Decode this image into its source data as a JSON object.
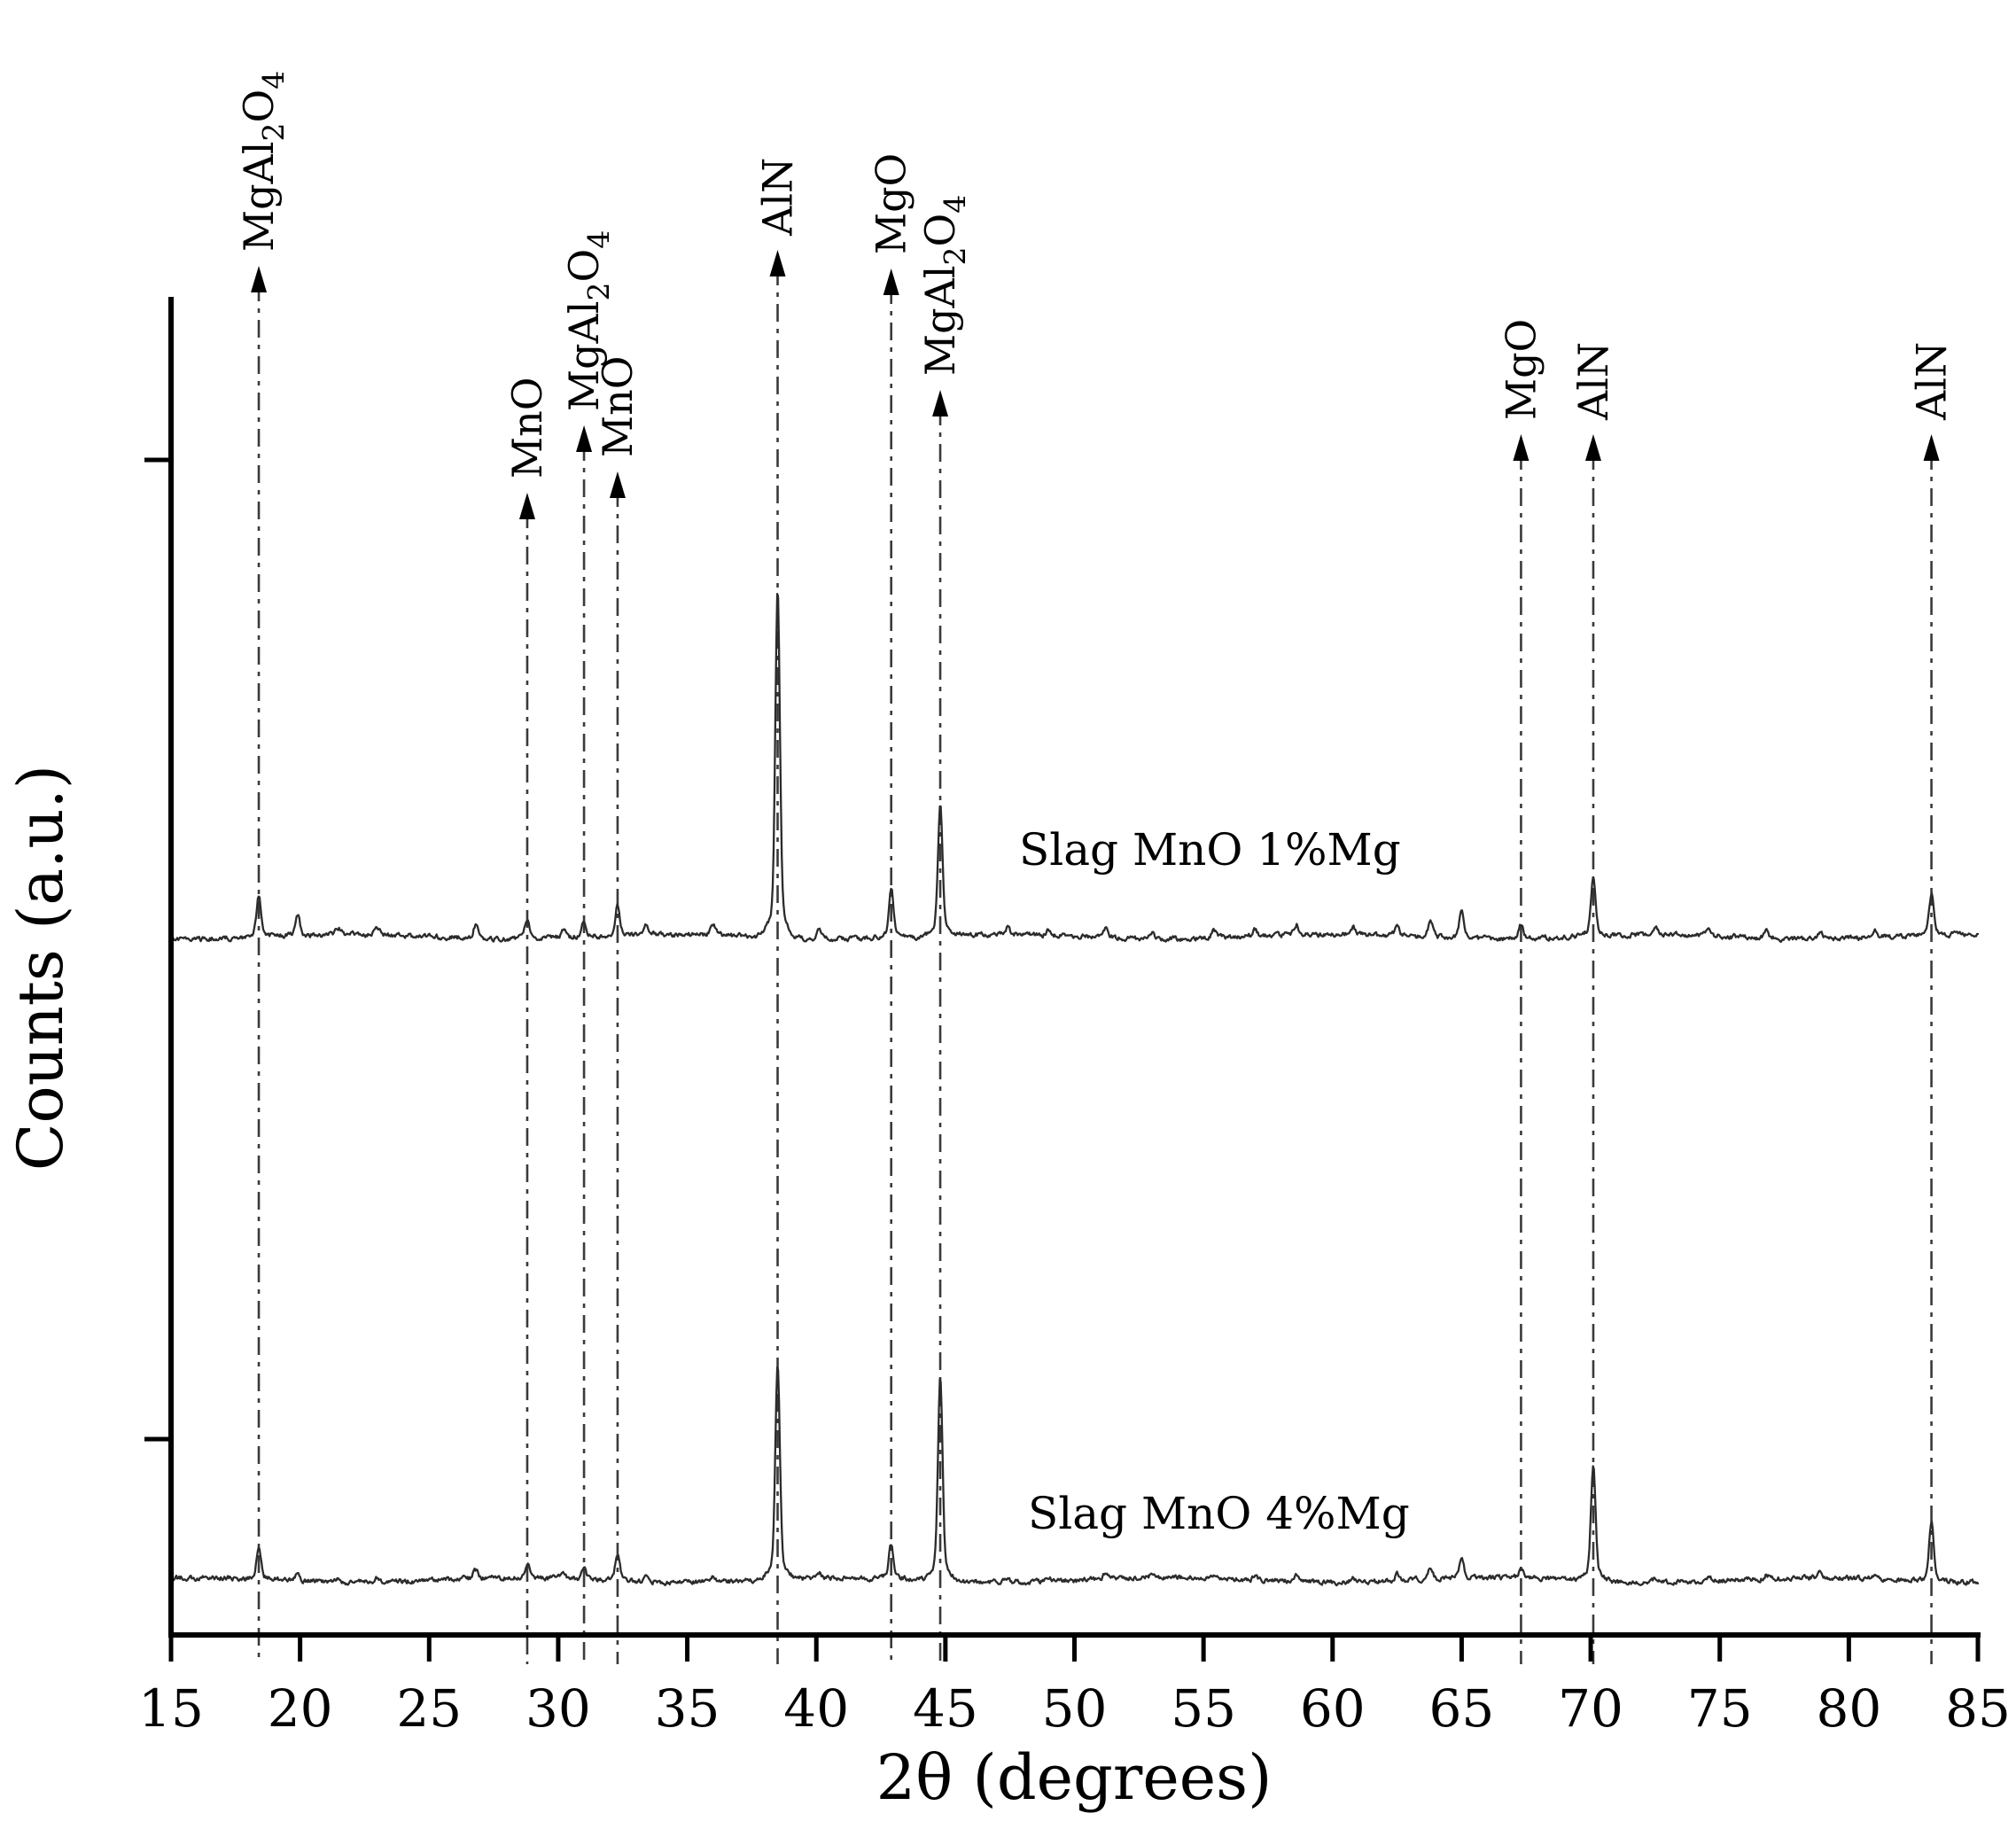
{
  "figure": {
    "background": "#ffffff",
    "description": "XRD diffractogram with two stacked patterns and labeled phase peaks"
  },
  "chart_data": {
    "type": "line",
    "chart_kind": "xrd-diffractogram",
    "title": "",
    "xlabel": "2θ (degrees)",
    "ylabel": "Counts (a.u.)",
    "x_range": [
      15,
      85
    ],
    "x_ticks": [
      15,
      20,
      25,
      30,
      35,
      40,
      45,
      50,
      55,
      60,
      65,
      70,
      75,
      80,
      85
    ],
    "y_axis": "arbitrary units (no numeric tick labels)",
    "grid": false,
    "legend_position": "inline annotations next to each trace",
    "colors": {
      "trace": "#2b2b2b",
      "marker_line": "#3a3a3a",
      "text": "#000000"
    },
    "series": [
      {
        "name": "Slag MnO 1%Mg",
        "peaks": [
          [
            18.4,
            12
          ],
          [
            19.9,
            6
          ],
          [
            21.5,
            2
          ],
          [
            23.0,
            2
          ],
          [
            26.8,
            4
          ],
          [
            28.8,
            6
          ],
          [
            30.2,
            3
          ],
          [
            31.0,
            5
          ],
          [
            32.3,
            9
          ],
          [
            33.4,
            3
          ],
          [
            36.0,
            3
          ],
          [
            38.5,
            100
          ],
          [
            40.1,
            3
          ],
          [
            42.9,
            15
          ],
          [
            44.8,
            38
          ],
          [
            47.4,
            2
          ],
          [
            49.0,
            2
          ],
          [
            51.2,
            3
          ],
          [
            53.0,
            2
          ],
          [
            55.4,
            2
          ],
          [
            57.0,
            2
          ],
          [
            58.6,
            3
          ],
          [
            60.8,
            2
          ],
          [
            62.5,
            3
          ],
          [
            63.8,
            5
          ],
          [
            65.0,
            8
          ],
          [
            67.3,
            4
          ],
          [
            70.1,
            17
          ],
          [
            72.5,
            2
          ],
          [
            74.6,
            2
          ],
          [
            76.8,
            2
          ],
          [
            78.9,
            2
          ],
          [
            81.0,
            2
          ],
          [
            83.2,
            12
          ]
        ]
      },
      {
        "name": "Slag MnO 4%Mg",
        "peaks": [
          [
            18.4,
            16
          ],
          [
            19.9,
            4
          ],
          [
            21.5,
            2
          ],
          [
            23.0,
            2
          ],
          [
            26.8,
            4
          ],
          [
            28.8,
            7
          ],
          [
            30.2,
            3
          ],
          [
            31.0,
            5
          ],
          [
            32.3,
            12
          ],
          [
            33.4,
            3
          ],
          [
            36.0,
            3
          ],
          [
            38.5,
            100
          ],
          [
            40.1,
            3
          ],
          [
            42.9,
            16
          ],
          [
            44.8,
            95
          ],
          [
            47.4,
            2
          ],
          [
            49.0,
            2
          ],
          [
            51.2,
            3
          ],
          [
            53.0,
            2
          ],
          [
            55.4,
            2
          ],
          [
            57.0,
            2
          ],
          [
            58.6,
            3
          ],
          [
            60.8,
            2
          ],
          [
            62.5,
            3
          ],
          [
            63.8,
            6
          ],
          [
            65.0,
            9
          ],
          [
            67.3,
            4
          ],
          [
            70.1,
            55
          ],
          [
            72.5,
            2
          ],
          [
            74.6,
            2
          ],
          [
            76.8,
            2
          ],
          [
            78.9,
            2
          ],
          [
            81.0,
            2
          ],
          [
            83.2,
            28
          ]
        ]
      }
    ],
    "peak_markers": [
      {
        "two_theta": 18.4,
        "phase": "MgAl₂O₄",
        "arrow_tip_y": 300
      },
      {
        "two_theta": 28.8,
        "phase": "MnO",
        "arrow_tip_y": 556
      },
      {
        "two_theta": 31.0,
        "phase": "MgAl₂O₄",
        "arrow_tip_y": 480
      },
      {
        "two_theta": 32.3,
        "phase": "MnO",
        "arrow_tip_y": 532
      },
      {
        "two_theta": 38.5,
        "phase": "AlN",
        "arrow_tip_y": 282
      },
      {
        "two_theta": 42.9,
        "phase": "MgO",
        "arrow_tip_y": 303
      },
      {
        "two_theta": 44.8,
        "phase": "MgAl₂O₄",
        "arrow_tip_y": 440
      },
      {
        "two_theta": 67.3,
        "phase": "MgO",
        "arrow_tip_y": 490
      },
      {
        "two_theta": 70.1,
        "phase": "AlN",
        "arrow_tip_y": 490
      },
      {
        "two_theta": 83.2,
        "phase": "AlN",
        "arrow_tip_y": 490
      }
    ]
  }
}
